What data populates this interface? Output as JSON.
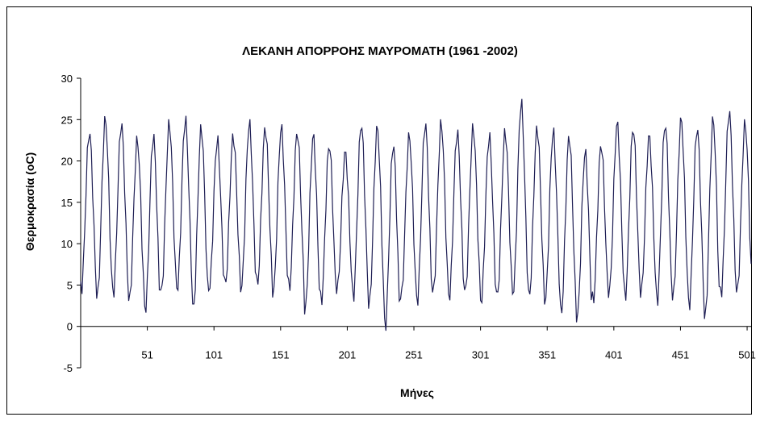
{
  "chart_data": {
    "type": "line",
    "title": "ΛΕΚΑΝΗ ΑΠΟΡΡΟΗΣ ΜΑΥΡΟΜΑΤΗ (1961 -2002)",
    "xlabel": "Μήνες",
    "ylabel": "Θερμοκρασία (oC)",
    "xlim": [
      1,
      504
    ],
    "ylim": [
      -5,
      30
    ],
    "xticks": [
      "51",
      "101",
      "151",
      "201",
      "251",
      "301",
      "351",
      "401",
      "451",
      "501"
    ],
    "yticks": [
      "30",
      "25",
      "20",
      "15",
      "10",
      "5",
      "0",
      "-5"
    ],
    "grid": false,
    "legend": "none",
    "line_color": "#1f1f55",
    "series": [
      {
        "annual_max": [
          23.5,
          25.0,
          24.5,
          22.5,
          23.0,
          24.5,
          25.0,
          24.0,
          22.5,
          23.0,
          24.5,
          24.0,
          24.0,
          23.5,
          23.0,
          22.0,
          21.0,
          24.5,
          24.0,
          22.0,
          23.0,
          24.5,
          24.5,
          23.5,
          24.0,
          23.0,
          23.5,
          27.0,
          24.0,
          23.5,
          23.0,
          21.0,
          22.0,
          24.5,
          24.0,
          23.0,
          24.5,
          25.0,
          24.0,
          25.0,
          26.0,
          24.5
        ],
        "annual_min": [
          4.5,
          3.5,
          4.0,
          3.0,
          2.0,
          4.0,
          4.5,
          2.0,
          4.5,
          5.0,
          4.5,
          5.0,
          4.0,
          4.5,
          2.0,
          3.0,
          4.5,
          3.5,
          2.5,
          0.0,
          3.5,
          3.0,
          4.0,
          3.5,
          4.0,
          3.0,
          3.5,
          4.0,
          3.5,
          3.0,
          1.5,
          1.0,
          3.0,
          4.0,
          3.5,
          4.0,
          3.0,
          3.5,
          2.5,
          1.0,
          4.0,
          4.0
        ]
      }
    ]
  }
}
